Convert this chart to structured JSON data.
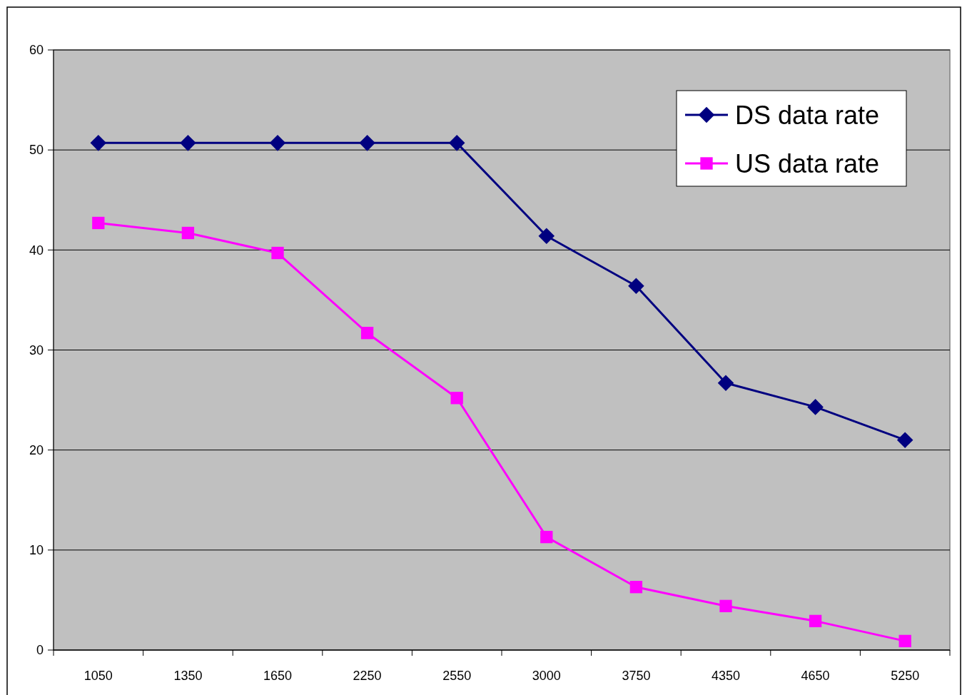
{
  "chart_data": {
    "type": "line",
    "categories": [
      "1050",
      "1350",
      "1650",
      "2250",
      "2550",
      "3000",
      "3750",
      "4350",
      "4650",
      "5250"
    ],
    "ylim": [
      0,
      60
    ],
    "yticks": [
      0,
      10,
      20,
      30,
      40,
      50,
      60
    ],
    "grid": "y",
    "legend": "top right",
    "series": [
      {
        "name": "DS data rate",
        "color": "#000080",
        "marker": "diamond",
        "values": [
          50.7,
          50.7,
          50.7,
          50.7,
          50.7,
          41.4,
          36.4,
          26.7,
          24.3,
          21.0
        ]
      },
      {
        "name": "US data rate",
        "color": "#ff00ff",
        "marker": "square",
        "values": [
          42.7,
          41.7,
          39.7,
          31.7,
          25.2,
          11.3,
          6.3,
          4.4,
          2.9,
          0.9
        ]
      }
    ]
  }
}
